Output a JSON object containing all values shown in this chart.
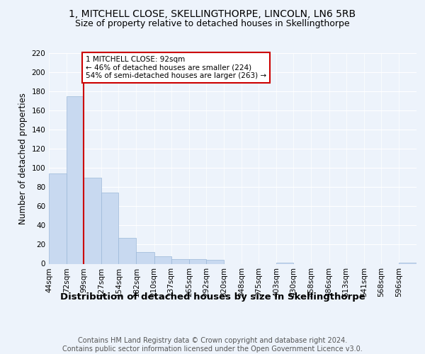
{
  "title1": "1, MITCHELL CLOSE, SKELLINGTHORPE, LINCOLN, LN6 5RB",
  "title2": "Size of property relative to detached houses in Skellingthorpe",
  "xlabel": "Distribution of detached houses by size in Skellingthorpe",
  "ylabel": "Number of detached properties",
  "bar_labels": [
    "44sqm",
    "72sqm",
    "99sqm",
    "127sqm",
    "154sqm",
    "182sqm",
    "210sqm",
    "237sqm",
    "265sqm",
    "292sqm",
    "320sqm",
    "348sqm",
    "375sqm",
    "403sqm",
    "430sqm",
    "458sqm",
    "486sqm",
    "513sqm",
    "541sqm",
    "568sqm",
    "596sqm"
  ],
  "bar_values": [
    94,
    175,
    90,
    74,
    27,
    12,
    8,
    5,
    5,
    4,
    0,
    0,
    0,
    1,
    0,
    0,
    0,
    0,
    0,
    0,
    1
  ],
  "bar_color": "#c8d9f0",
  "bar_edgecolor": "#9ab8d8",
  "annotation_text": "1 MITCHELL CLOSE: 92sqm\n← 46% of detached houses are smaller (224)\n54% of semi-detached houses are larger (263) →",
  "vline_color": "#cc0000",
  "annotation_box_edgecolor": "#cc0000",
  "annotation_box_facecolor": "#ffffff",
  "background_color": "#edf3fb",
  "plot_background": "#edf3fb",
  "footer_text": "Contains HM Land Registry data © Crown copyright and database right 2024.\nContains public sector information licensed under the Open Government Licence v3.0.",
  "ylim": [
    0,
    220
  ],
  "yticks": [
    0,
    20,
    40,
    60,
    80,
    100,
    120,
    140,
    160,
    180,
    200,
    220
  ],
  "title1_fontsize": 10,
  "title2_fontsize": 9,
  "xlabel_fontsize": 9.5,
  "ylabel_fontsize": 8.5,
  "tick_fontsize": 7.5,
  "footer_fontsize": 7,
  "grid_color": "#ffffff",
  "bin_edges": [
    44,
    72,
    99,
    127,
    154,
    182,
    210,
    237,
    265,
    292,
    320,
    348,
    375,
    403,
    430,
    458,
    486,
    513,
    541,
    568,
    596,
    624
  ]
}
